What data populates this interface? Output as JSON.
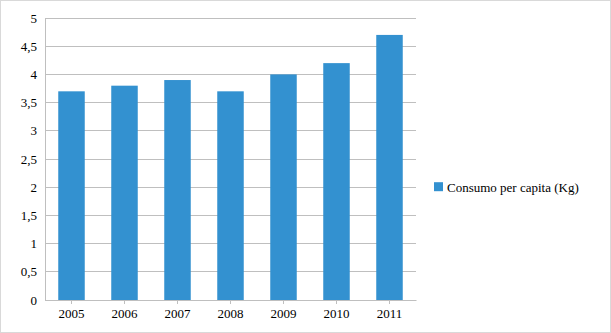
{
  "chart_data": {
    "type": "bar",
    "categories": [
      "2005",
      "2006",
      "2007",
      "2008",
      "2009",
      "2010",
      "2011"
    ],
    "series": [
      {
        "name": "Consumo per capita (Kg)",
        "color": "#3391d0",
        "values": [
          3.7,
          3.8,
          3.9,
          3.7,
          4.0,
          4.2,
          4.7
        ]
      }
    ],
    "ylim": [
      0,
      5
    ],
    "yticks": [
      0,
      {
        "value": 0.5,
        "label": "0,5"
      },
      1,
      {
        "value": 1.5,
        "label": "1,5"
      },
      2,
      {
        "value": 2.5,
        "label": "2,5"
      },
      3,
      {
        "value": 3.5,
        "label": "3,5"
      },
      4,
      {
        "value": 4.5,
        "label": "4,5"
      },
      5
    ],
    "grid": true,
    "legend": "right"
  }
}
